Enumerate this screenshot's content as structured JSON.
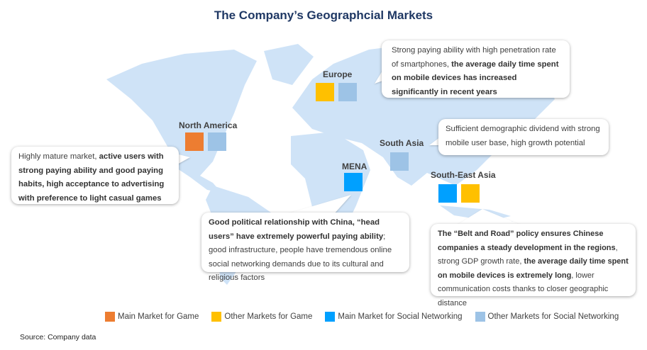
{
  "title": "The Company’s Geographcial Markets",
  "colors": {
    "main_game": "#ed7d31",
    "other_game": "#ffc000",
    "main_social": "#00a0ff",
    "other_social": "#9dc3e6",
    "map": "#cfe3f7",
    "title": "#1f3864"
  },
  "regions": {
    "europe": {
      "label": "Europe",
      "markets": [
        "other_game",
        "other_social"
      ]
    },
    "north_america": {
      "label": "North America",
      "markets": [
        "main_game",
        "other_social"
      ]
    },
    "south_asia": {
      "label": "South Asia",
      "markets": [
        "other_social"
      ]
    },
    "mena": {
      "label": "MENA",
      "markets": [
        "main_social"
      ]
    },
    "south_east_asia": {
      "label": "South-East Asia",
      "markets": [
        "main_social",
        "other_game"
      ]
    }
  },
  "callouts": {
    "europe": [
      {
        "text": "Strong paying ability with high penetration rate of smartphones, ",
        "bold": false
      },
      {
        "text": "the average daily time spent on mobile devices has increased significantly in recent years",
        "bold": true
      }
    ],
    "north_america": [
      {
        "text": "Highly mature market, ",
        "bold": false
      },
      {
        "text": "active users with strong paying ability and good paying habits, high acceptance to advertising with preference to light casual games",
        "bold": true
      }
    ],
    "south_asia": [
      {
        "text": "Sufficient demographic dividend with strong mobile user base, high growth potential",
        "bold": false
      }
    ],
    "mena": [
      {
        "text": "Good political relationship with China, “head users” have extremely powerful paying ability",
        "bold": true
      },
      {
        "text": "; good infrastructure, people have tremendous online social networking demands due to its cultural and religious factors",
        "bold": false
      }
    ],
    "south_east_asia": [
      {
        "text": "The “Belt and Road” policy ensures Chinese companies a steady development in the regions",
        "bold": true
      },
      {
        "text": ", strong GDP growth rate, ",
        "bold": false
      },
      {
        "text": "the average daily time spent on mobile devices is extremely long",
        "bold": true
      },
      {
        "text": ", lower communication costs thanks to closer geographic distance",
        "bold": false
      }
    ]
  },
  "legend": [
    {
      "key": "main_game",
      "label": "Main Market for Game"
    },
    {
      "key": "other_game",
      "label": "Other Markets for Game"
    },
    {
      "key": "main_social",
      "label": "Main Market for Social Networking"
    },
    {
      "key": "other_social",
      "label": "Other Markets for Social Networking"
    }
  ],
  "source": "Source: Company data"
}
